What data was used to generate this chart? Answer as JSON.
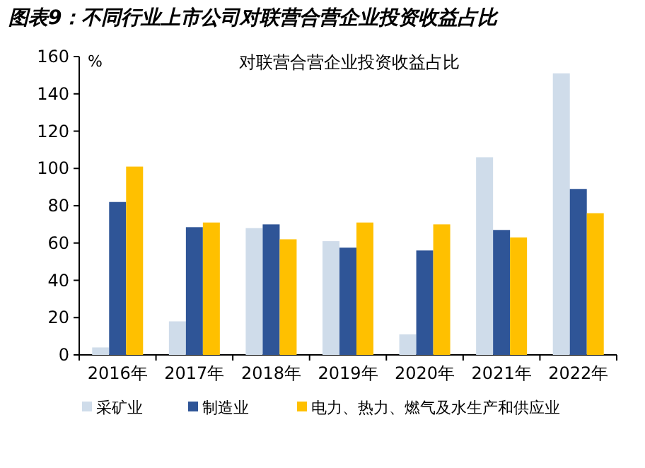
{
  "chart_data": {
    "type": "bar",
    "title": "图表9：不同行业上市公司对联营合营企业投资收益占比",
    "subtitle": "对联营合营企业投资收益占比",
    "ylabel": "%",
    "categories": [
      "2016年",
      "2017年",
      "2018年",
      "2019年",
      "2020年",
      "2021年",
      "2022年"
    ],
    "series": [
      {
        "name": "采矿业",
        "color": "#cfdcea",
        "values": [
          4,
          18,
          68,
          61,
          11,
          106,
          151
        ]
      },
      {
        "name": "制造业",
        "color": "#2f5597",
        "values": [
          82,
          68.5,
          70,
          57.5,
          56,
          67,
          89
        ]
      },
      {
        "name": "电力、热力、燃气及水生产和供应业",
        "color": "#ffc000",
        "values": [
          101,
          71,
          62,
          71,
          70,
          63,
          76
        ]
      }
    ],
    "ylim": [
      0,
      160
    ],
    "yticks": [
      0,
      20,
      40,
      60,
      80,
      100,
      120,
      140,
      160
    ],
    "legend": "bottom"
  }
}
